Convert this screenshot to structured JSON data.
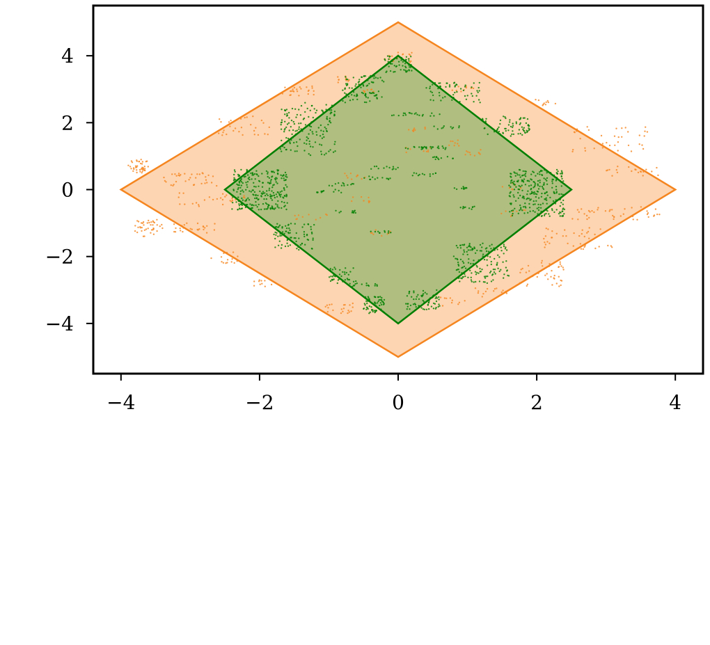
{
  "chart_data": {
    "type": "scatter",
    "title": "",
    "xlabel": "",
    "ylabel": "",
    "xlim": [
      -4.4,
      4.4
    ],
    "ylim": [
      -5.5,
      5.5
    ],
    "grid": false,
    "x_ticks": [
      -4,
      -2,
      0,
      2,
      4
    ],
    "y_ticks": [
      -4,
      -2,
      0,
      2,
      4
    ],
    "x_tick_labels": [
      "−4",
      "−2",
      "0",
      "2",
      "4"
    ],
    "y_tick_labels": [
      "−4",
      "−2",
      "0",
      "2",
      "4"
    ],
    "regions": [
      {
        "shape": "diamond",
        "vertices": [
          [
            -4,
            0
          ],
          [
            0,
            5
          ],
          [
            4,
            0
          ],
          [
            0,
            -5
          ]
        ],
        "edge_color": "#f5861f",
        "fill_color": "#fdd5b2"
      },
      {
        "shape": "diamond",
        "vertices": [
          [
            -2.5,
            0
          ],
          [
            0,
            4
          ],
          [
            2.5,
            0
          ],
          [
            0,
            -4
          ]
        ],
        "edge_color": "#007f00",
        "fill_color": "#b0bf80"
      }
    ],
    "series": [
      {
        "color": "#f5861f",
        "clusters": [
          {
            "x": [
              -3.9,
              -3.6
            ],
            "y": [
              0.5,
              0.9
            ],
            "n": 40
          },
          {
            "x": [
              -3.8,
              -3.4
            ],
            "y": [
              -1.4,
              -0.9
            ],
            "n": 40
          },
          {
            "x": [
              -3.3,
              -2.6
            ],
            "y": [
              -1.3,
              -1.0
            ],
            "n": 25
          },
          {
            "x": [
              -3.4,
              -2.6
            ],
            "y": [
              0.1,
              0.5
            ],
            "n": 35
          },
          {
            "x": [
              -3.2,
              -2.2
            ],
            "y": [
              -0.5,
              -0.1
            ],
            "n": 30
          },
          {
            "x": [
              -2.6,
              -1.8
            ],
            "y": [
              1.6,
              2.2
            ],
            "n": 30
          },
          {
            "x": [
              -1.7,
              -1.2
            ],
            "y": [
              2.8,
              3.1
            ],
            "n": 25
          },
          {
            "x": [
              -0.9,
              -0.7
            ],
            "y": [
              3.2,
              3.4
            ],
            "n": 10
          },
          {
            "x": [
              -2.7,
              -2.3
            ],
            "y": [
              -2.2,
              -1.8
            ],
            "n": 15
          },
          {
            "x": [
              -2.1,
              -1.8
            ],
            "y": [
              -2.9,
              -2.7
            ],
            "n": 10
          },
          {
            "x": [
              -1.1,
              -0.6
            ],
            "y": [
              -3.7,
              -3.4
            ],
            "n": 20
          },
          {
            "x": [
              -0.2,
              0.2
            ],
            "y": [
              3.8,
              4.1
            ],
            "n": 20
          },
          {
            "x": [
              0.7,
              1.1
            ],
            "y": [
              2.9,
              3.1
            ],
            "n": 10
          },
          {
            "x": [
              1.7,
              2.4
            ],
            "y": [
              -2.9,
              -2.1
            ],
            "n": 40
          },
          {
            "x": [
              2.1,
              3.2
            ],
            "y": [
              -1.8,
              -1.1
            ],
            "n": 40
          },
          {
            "x": [
              2.5,
              3.8
            ],
            "y": [
              -0.9,
              -0.5
            ],
            "n": 40
          },
          {
            "x": [
              2.5,
              3.6
            ],
            "y": [
              1.1,
              1.9
            ],
            "n": 40
          },
          {
            "x": [
              3.0,
              3.8
            ],
            "y": [
              0.4,
              0.7
            ],
            "n": 20
          },
          {
            "x": [
              1.9,
              2.3
            ],
            "y": [
              2.5,
              2.7
            ],
            "n": 10
          },
          {
            "x": [
              1.1,
              1.6
            ],
            "y": [
              -3.2,
              -2.9
            ],
            "n": 15
          },
          {
            "x": [
              0.6,
              1.0
            ],
            "y": [
              -3.5,
              -3.2
            ],
            "n": 10
          },
          {
            "x": [
              -0.5,
              -0.3
            ],
            "y": [
              2.9,
              3.0
            ],
            "n": 8
          },
          {
            "x": [
              0.9,
              1.2
            ],
            "y": [
              1.0,
              1.2
            ],
            "n": 10
          },
          {
            "x": [
              0.7,
              0.9
            ],
            "y": [
              1.3,
              1.5
            ],
            "n": 8
          },
          {
            "x": [
              0.1,
              0.4
            ],
            "y": [
              1.7,
              1.9
            ],
            "n": 8
          },
          {
            "x": [
              -0.7,
              -0.4
            ],
            "y": [
              -0.4,
              -0.2
            ],
            "n": 8
          },
          {
            "x": [
              -0.4,
              -0.1
            ],
            "y": [
              -1.4,
              -1.2
            ],
            "n": 8
          },
          {
            "x": [
              -1.5,
              -1.0
            ],
            "y": [
              -0.9,
              -0.7
            ],
            "n": 10
          },
          {
            "x": [
              -0.8,
              -0.4
            ],
            "y": [
              0.3,
              0.5
            ],
            "n": 10
          },
          {
            "x": [
              1.4,
              1.8
            ],
            "y": [
              0.0,
              0.2
            ],
            "n": 8
          },
          {
            "x": [
              1.4,
              1.9
            ],
            "y": [
              -0.8,
              -0.6
            ],
            "n": 8
          },
          {
            "x": [
              0.1,
              0.5
            ],
            "y": [
              1.1,
              1.3
            ],
            "n": 8
          }
        ]
      },
      {
        "color": "#007f00",
        "clusters": [
          {
            "x": [
              -2.4,
              -1.6
            ],
            "y": [
              -0.6,
              0.6
            ],
            "n": 260
          },
          {
            "x": [
              -1.7,
              -0.9
            ],
            "y": [
              1.0,
              2.6
            ],
            "n": 150
          },
          {
            "x": [
              -0.8,
              -0.2
            ],
            "y": [
              2.6,
              3.4
            ],
            "n": 70
          },
          {
            "x": [
              -0.2,
              0.2
            ],
            "y": [
              3.5,
              4.0
            ],
            "n": 50
          },
          {
            "x": [
              0.4,
              1.2
            ],
            "y": [
              2.6,
              3.2
            ],
            "n": 60
          },
          {
            "x": [
              1.2,
              1.9
            ],
            "y": [
              1.6,
              2.2
            ],
            "n": 70
          },
          {
            "x": [
              1.6,
              2.4
            ],
            "y": [
              -0.8,
              0.6
            ],
            "n": 260
          },
          {
            "x": [
              0.8,
              1.6
            ],
            "y": [
              -2.8,
              -1.6
            ],
            "n": 150
          },
          {
            "x": [
              -0.5,
              -0.2
            ],
            "y": [
              -3.7,
              -3.2
            ],
            "n": 60
          },
          {
            "x": [
              0.1,
              0.6
            ],
            "y": [
              -3.6,
              -3.0
            ],
            "n": 70
          },
          {
            "x": [
              -1.8,
              -1.2
            ],
            "y": [
              -1.8,
              -1.0
            ],
            "n": 80
          },
          {
            "x": [
              -1.0,
              -0.6
            ],
            "y": [
              -2.8,
              -2.3
            ],
            "n": 40
          },
          {
            "x": [
              -0.7,
              -0.3
            ],
            "y": [
              -2.9,
              -2.8
            ],
            "n": 15
          },
          {
            "x": [
              -0.6,
              -0.3
            ],
            "y": [
              2.8,
              2.9
            ],
            "n": 15
          },
          {
            "x": [
              -0.1,
              0.2
            ],
            "y": [
              2.2,
              2.3
            ],
            "n": 10
          },
          {
            "x": [
              0.1,
              0.5
            ],
            "y": [
              1.2,
              1.3
            ],
            "n": 15
          },
          {
            "x": [
              0.4,
              0.7
            ],
            "y": [
              1.2,
              1.3
            ],
            "n": 12
          },
          {
            "x": [
              0.5,
              0.8
            ],
            "y": [
              0.9,
              1.0
            ],
            "n": 12
          },
          {
            "x": [
              0.2,
              0.6
            ],
            "y": [
              0.4,
              0.5
            ],
            "n": 12
          },
          {
            "x": [
              -0.4,
              0.0
            ],
            "y": [
              0.6,
              0.7
            ],
            "n": 12
          },
          {
            "x": [
              -0.5,
              -0.1
            ],
            "y": [
              0.3,
              0.4
            ],
            "n": 12
          },
          {
            "x": [
              -1.2,
              -0.8
            ],
            "y": [
              -0.1,
              0.0
            ],
            "n": 12
          },
          {
            "x": [
              -1.0,
              -0.6
            ],
            "y": [
              0.1,
              0.2
            ],
            "n": 12
          },
          {
            "x": [
              0.8,
              1.0
            ],
            "y": [
              0.0,
              0.1
            ],
            "n": 10
          },
          {
            "x": [
              0.9,
              1.1
            ],
            "y": [
              -0.6,
              -0.5
            ],
            "n": 10
          },
          {
            "x": [
              -0.9,
              -0.6
            ],
            "y": [
              -0.7,
              -0.6
            ],
            "n": 10
          },
          {
            "x": [
              -0.4,
              -0.1
            ],
            "y": [
              -1.3,
              -1.2
            ],
            "n": 10
          },
          {
            "x": [
              0.5,
              0.9
            ],
            "y": [
              1.8,
              1.9
            ],
            "n": 10
          },
          {
            "x": [
              0.2,
              0.6
            ],
            "y": [
              2.2,
              2.3
            ],
            "n": 10
          }
        ]
      }
    ]
  }
}
